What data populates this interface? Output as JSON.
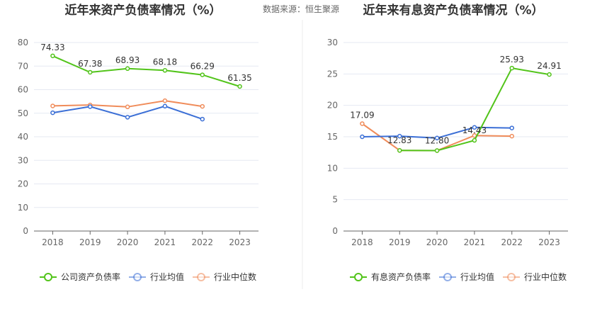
{
  "source_label": "数据来源：恒生聚源",
  "chart_data": [
    {
      "type": "line",
      "title": "近年来资产负债率情况（%）",
      "categories": [
        "2018",
        "2019",
        "2020",
        "2021",
        "2022",
        "2023"
      ],
      "ylim": [
        0,
        80
      ],
      "yticks": [
        0,
        10,
        20,
        30,
        40,
        50,
        60,
        70,
        80
      ],
      "grid": true,
      "legend_position": "bottom",
      "series": [
        {
          "name": "公司资产负债率",
          "color": "#52c41a",
          "values": [
            74.33,
            67.38,
            68.93,
            68.18,
            66.29,
            61.35
          ],
          "labels": [
            "74.33",
            "67.38",
            "68.93",
            "68.18",
            "66.29",
            "61.35"
          ]
        },
        {
          "name": "行业均值",
          "color": "#3b6fd6",
          "values": [
            50.2,
            52.8,
            48.3,
            53.0,
            47.5,
            null
          ]
        },
        {
          "name": "行业中位数",
          "color": "#f08c5a",
          "values": [
            53.1,
            53.5,
            52.7,
            55.3,
            52.9,
            null
          ]
        }
      ]
    },
    {
      "type": "line",
      "title": "近年来有息资产负债率情况（%）",
      "categories": [
        "2018",
        "2019",
        "2020",
        "2021",
        "2022",
        "2023"
      ],
      "ylim": [
        0,
        30
      ],
      "yticks": [
        0,
        5,
        10,
        15,
        20,
        25,
        30
      ],
      "grid": true,
      "legend_position": "bottom",
      "series": [
        {
          "name": "有息资产负债率",
          "color": "#52c41a",
          "values": [
            null,
            12.83,
            12.8,
            14.43,
            25.93,
            24.91
          ],
          "labels": [
            null,
            "12.83",
            "12.80",
            "14.43",
            "25.93",
            "24.91"
          ]
        },
        {
          "name": "行业均值",
          "color": "#3b6fd6",
          "values": [
            15.0,
            15.1,
            14.8,
            16.5,
            16.4,
            null
          ]
        },
        {
          "name": "行业中位数",
          "color": "#f08c5a",
          "values": [
            17.09,
            12.83,
            12.8,
            15.2,
            15.1,
            null
          ],
          "labels": [
            "17.09",
            null,
            null,
            null,
            null,
            null
          ]
        }
      ]
    }
  ]
}
